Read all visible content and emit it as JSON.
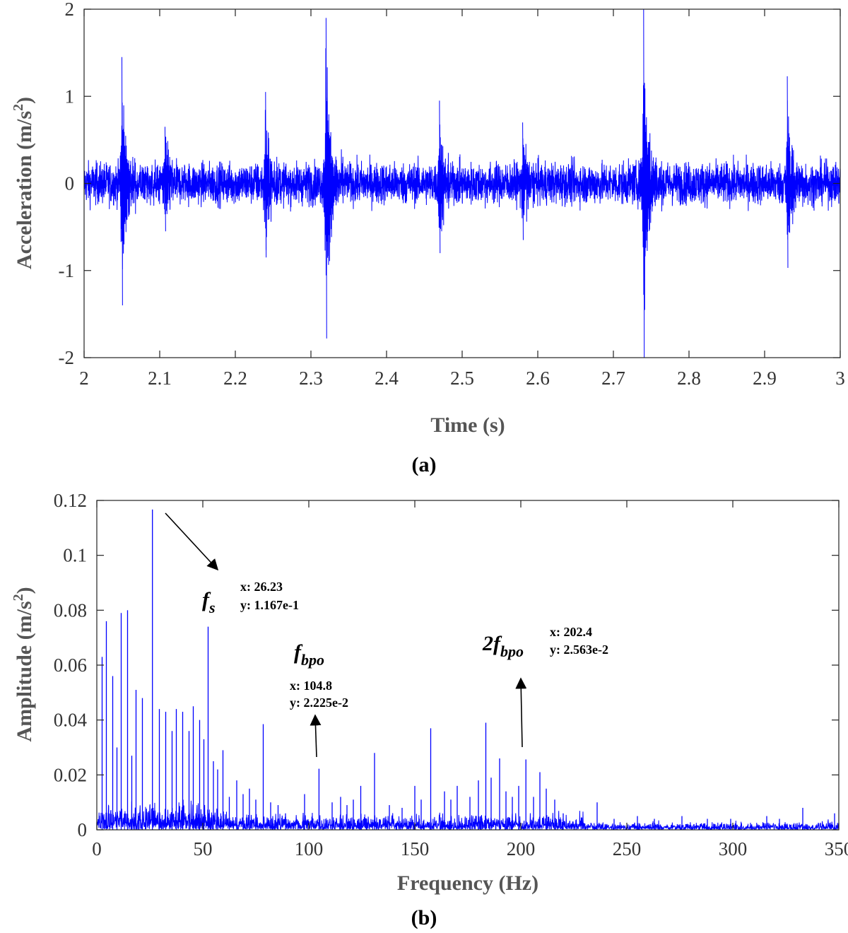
{
  "chart_data": [
    {
      "type": "line",
      "panel_label": "(a)",
      "xlabel": "Time (s)",
      "ylabel": "Acceleration (m/s²)",
      "xlim": [
        2,
        3
      ],
      "ylim": [
        -2,
        2
      ],
      "xticks": [
        2,
        2.1,
        2.2,
        2.3,
        2.4,
        2.5,
        2.6,
        2.7,
        2.8,
        2.9,
        3
      ],
      "xtick_labels": [
        "2",
        "2.1",
        "2.2",
        "2.3",
        "2.4",
        "2.5",
        "2.6",
        "2.7",
        "2.8",
        "2.9",
        "3"
      ],
      "yticks": [
        -2,
        -1,
        0,
        1,
        2
      ],
      "ytick_labels": [
        "-2",
        "-1",
        "0",
        "1",
        "2"
      ],
      "grid": false,
      "line_color": "#0000ff",
      "noise_amplitude": 0.13,
      "bursts": [
        {
          "t": 2.05,
          "peak": 1.45,
          "trough": -1.4
        },
        {
          "t": 2.107,
          "peak": 0.65,
          "trough": -0.55
        },
        {
          "t": 2.24,
          "peak": 1.05,
          "trough": -0.85
        },
        {
          "t": 2.32,
          "peak": 1.9,
          "trough": -1.78
        },
        {
          "t": 2.47,
          "peak": 0.95,
          "trough": -0.8
        },
        {
          "t": 2.58,
          "peak": 0.7,
          "trough": -0.65
        },
        {
          "t": 2.74,
          "peak": 2.0,
          "trough": -2.0
        },
        {
          "t": 2.93,
          "peak": 1.23,
          "trough": -0.97
        }
      ]
    },
    {
      "type": "line",
      "panel_label": "(b)",
      "xlabel": "Frequency (Hz)",
      "ylabel": "Amplitude (m/s²)",
      "xlim": [
        0,
        350
      ],
      "ylim": [
        0,
        0.12
      ],
      "xticks": [
        0,
        50,
        100,
        150,
        200,
        250,
        300,
        350
      ],
      "xtick_labels": [
        "0",
        "50",
        "100",
        "150",
        "200",
        "250",
        "300",
        "350"
      ],
      "yticks": [
        0,
        0.02,
        0.04,
        0.06,
        0.08,
        0.1,
        0.12
      ],
      "ytick_labels": [
        "0",
        "0.02",
        "0.04",
        "0.06",
        "0.08",
        "0.1",
        "0.12"
      ],
      "grid": false,
      "line_color": "#0000ff",
      "peaks": [
        {
          "x": 2.5,
          "y": 0.063
        },
        {
          "x": 4.5,
          "y": 0.076
        },
        {
          "x": 7.5,
          "y": 0.056
        },
        {
          "x": 9.5,
          "y": 0.03
        },
        {
          "x": 11.5,
          "y": 0.079
        },
        {
          "x": 14.5,
          "y": 0.08
        },
        {
          "x": 16.5,
          "y": 0.027
        },
        {
          "x": 18.5,
          "y": 0.051
        },
        {
          "x": 21.5,
          "y": 0.048
        },
        {
          "x": 26.23,
          "y": 0.1167
        },
        {
          "x": 29.5,
          "y": 0.044
        },
        {
          "x": 32.5,
          "y": 0.043
        },
        {
          "x": 35.5,
          "y": 0.036
        },
        {
          "x": 37.5,
          "y": 0.044
        },
        {
          "x": 40.5,
          "y": 0.043
        },
        {
          "x": 43.5,
          "y": 0.036
        },
        {
          "x": 45.5,
          "y": 0.045
        },
        {
          "x": 48.5,
          "y": 0.04
        },
        {
          "x": 50.5,
          "y": 0.033
        },
        {
          "x": 52.5,
          "y": 0.074
        },
        {
          "x": 55,
          "y": 0.025
        },
        {
          "x": 57,
          "y": 0.022
        },
        {
          "x": 59.5,
          "y": 0.029
        },
        {
          "x": 62.5,
          "y": 0.012
        },
        {
          "x": 66,
          "y": 0.018
        },
        {
          "x": 69,
          "y": 0.013
        },
        {
          "x": 72,
          "y": 0.015
        },
        {
          "x": 75,
          "y": 0.011
        },
        {
          "x": 78.5,
          "y": 0.0385
        },
        {
          "x": 82,
          "y": 0.01
        },
        {
          "x": 85.5,
          "y": 0.009
        },
        {
          "x": 89,
          "y": 0.006
        },
        {
          "x": 98,
          "y": 0.013
        },
        {
          "x": 104.8,
          "y": 0.02225
        },
        {
          "x": 111,
          "y": 0.01
        },
        {
          "x": 115,
          "y": 0.012
        },
        {
          "x": 118,
          "y": 0.009
        },
        {
          "x": 121,
          "y": 0.011
        },
        {
          "x": 124.5,
          "y": 0.016
        },
        {
          "x": 131,
          "y": 0.028
        },
        {
          "x": 138,
          "y": 0.009
        },
        {
          "x": 144,
          "y": 0.008
        },
        {
          "x": 150,
          "y": 0.016
        },
        {
          "x": 153,
          "y": 0.011
        },
        {
          "x": 157.5,
          "y": 0.037
        },
        {
          "x": 164,
          "y": 0.014
        },
        {
          "x": 167,
          "y": 0.011
        },
        {
          "x": 170,
          "y": 0.016
        },
        {
          "x": 176,
          "y": 0.012
        },
        {
          "x": 180,
          "y": 0.018
        },
        {
          "x": 183.5,
          "y": 0.039
        },
        {
          "x": 186,
          "y": 0.019
        },
        {
          "x": 190,
          "y": 0.026
        },
        {
          "x": 193,
          "y": 0.014
        },
        {
          "x": 196,
          "y": 0.012
        },
        {
          "x": 199,
          "y": 0.016
        },
        {
          "x": 202.4,
          "y": 0.02563
        },
        {
          "x": 206,
          "y": 0.012
        },
        {
          "x": 209,
          "y": 0.021
        },
        {
          "x": 212,
          "y": 0.015
        },
        {
          "x": 216,
          "y": 0.011
        },
        {
          "x": 220,
          "y": 0.006
        },
        {
          "x": 236,
          "y": 0.01
        },
        {
          "x": 244,
          "y": 0.004
        },
        {
          "x": 255,
          "y": 0.005
        },
        {
          "x": 263,
          "y": 0.004
        },
        {
          "x": 276,
          "y": 0.005
        },
        {
          "x": 288,
          "y": 0.004
        },
        {
          "x": 299,
          "y": 0.004
        },
        {
          "x": 316,
          "y": 0.005
        },
        {
          "x": 322,
          "y": 0.004
        },
        {
          "x": 333,
          "y": 0.008
        },
        {
          "x": 348,
          "y": 0.006
        }
      ],
      "annotations": [
        {
          "label": "f",
          "sub": "s",
          "dx": "x: 26.23",
          "dy": "y: 1.167e-1",
          "target": {
            "x": 26.23,
            "y": 0.1167
          }
        },
        {
          "label": "f",
          "sub": "bpo",
          "dx": "x: 104.8",
          "dy": "y: 2.225e-2",
          "target": {
            "x": 104.8,
            "y": 0.02225
          }
        },
        {
          "label": "2f",
          "sub": "bpo",
          "dx": "x: 202.4",
          "dy": "y: 2.563e-2",
          "target": {
            "x": 202.4,
            "y": 0.02563
          }
        }
      ]
    }
  ]
}
